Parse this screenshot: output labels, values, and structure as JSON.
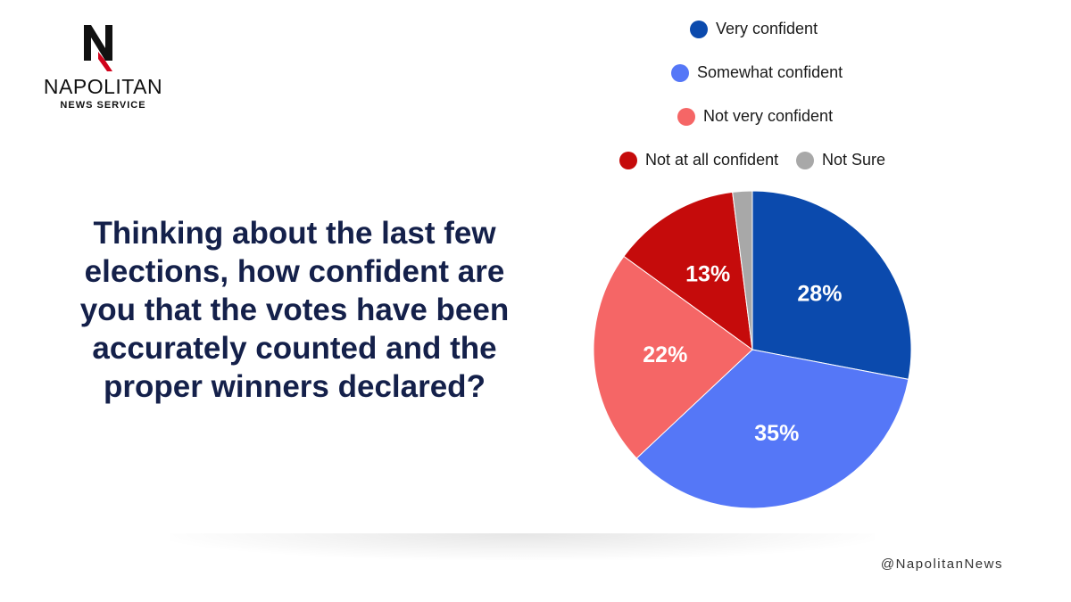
{
  "logo": {
    "mark": "N",
    "name": "NAPOLITAN",
    "subtitle": "NEWS SERVICE",
    "colors": {
      "mark": "#111111",
      "accent": "#d0021b"
    }
  },
  "question": "Thinking about the last few elections, how confident are you that the votes have been accurately counted and the proper winners declared?",
  "handle": "@NapolitanNews",
  "chart_data": {
    "type": "pie",
    "title": "",
    "start_angle_deg": 0,
    "direction": "clockwise",
    "slices": [
      {
        "label": "Very confident",
        "value": 28,
        "display": "28%",
        "color": "#0b4aad"
      },
      {
        "label": "Somewhat confident",
        "value": 35,
        "display": "35%",
        "color": "#5577f7"
      },
      {
        "label": "Not very confident",
        "value": 22,
        "display": "22%",
        "color": "#f56666"
      },
      {
        "label": "Not at all confident",
        "value": 13,
        "display": "13%",
        "color": "#c50b0b"
      },
      {
        "label": "Not Sure",
        "value": 2,
        "display": "",
        "color": "#a8a8a8"
      }
    ],
    "legend": {
      "placement": "top-right"
    }
  }
}
